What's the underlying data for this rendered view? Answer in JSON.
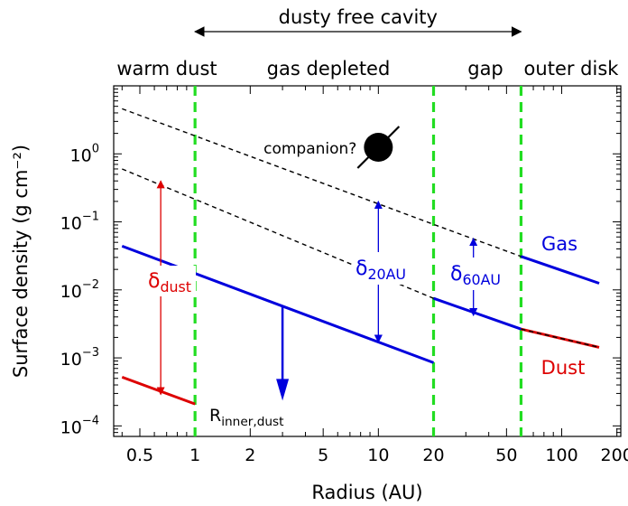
{
  "chart_data": {
    "type": "line",
    "title": "",
    "xlabel": "Radius (AU)",
    "ylabel": "Surface density (g cm⁻²)",
    "x_scale": "log",
    "y_scale": "log",
    "xlim": [
      0.36,
      210
    ],
    "ylim": [
      7e-05,
      10
    ],
    "x_ticks": [
      0.5,
      1,
      2,
      5,
      10,
      20,
      50,
      100,
      200
    ],
    "x_tick_labels": [
      "0.5",
      "1",
      "2",
      "5",
      "10",
      "20",
      "50",
      "100",
      "200"
    ],
    "y_ticks": [
      0.0001,
      0.001,
      0.01,
      0.1,
      1
    ],
    "y_tick_labels": [
      {
        "base": "10",
        "exp": "−4"
      },
      {
        "base": "10",
        "exp": "−3"
      },
      {
        "base": "10",
        "exp": "−2"
      },
      {
        "base": "10",
        "exp": "−1"
      },
      {
        "base": "10",
        "exp": "0"
      }
    ],
    "grid": false,
    "colors": {
      "gas": "#0000dd",
      "dust": "#dd0000",
      "boundary": "#22dd22",
      "reference": "#000000"
    },
    "series": [
      {
        "name": "",
        "style": "dashed",
        "color": "#000000",
        "x": [
          0.4,
          20,
          60,
          160
        ],
        "y": [
          4.6,
          0.092,
          0.031,
          0.0125
        ]
      },
      {
        "name": "",
        "style": "dashed",
        "color": "#000000",
        "x": [
          0.4,
          20,
          60,
          160
        ],
        "y": [
          0.6,
          0.0075,
          0.00265,
          0.00143
        ]
      },
      {
        "name": "Gas",
        "style": "solid",
        "color": "#0000dd",
        "x": [
          0.4,
          20
        ],
        "y": [
          0.044,
          0.00085
        ]
      },
      {
        "name": "Gas",
        "style": "solid",
        "color": "#0000dd",
        "x": [
          20,
          60
        ],
        "y": [
          0.0075,
          0.00265
        ]
      },
      {
        "name": "Gas",
        "style": "solid",
        "color": "#0000dd",
        "x": [
          60,
          160
        ],
        "y": [
          0.031,
          0.0125
        ]
      },
      {
        "name": "Dust",
        "style": "solid",
        "color": "#dd0000",
        "x": [
          0.4,
          1
        ],
        "y": [
          0.00052,
          0.00021
        ]
      },
      {
        "name": "Dust",
        "style": "solid",
        "color": "#dd0000",
        "x": [
          60,
          160
        ],
        "y": [
          0.00265,
          0.00143
        ]
      }
    ],
    "boundaries_x": [
      1,
      20,
      60
    ],
    "region_labels": [
      "warm dust",
      "gas depleted",
      "gap",
      "outer disk"
    ],
    "cavity_label": "dusty free cavity",
    "cavity_x": [
      1,
      60
    ],
    "arrows": [
      {
        "label": "δdust",
        "label_main": "δ",
        "label_sub": "dust",
        "color": "#dd0000",
        "x": 0.65,
        "y_top": 0.4,
        "y_bottom": 0.00029
      },
      {
        "label": "δ20AU",
        "label_main": "δ",
        "label_sub": "20AU",
        "color": "#0000dd",
        "x": 10,
        "y_top": 0.2,
        "y_bottom": 0.0017
      },
      {
        "label": "δ60AU",
        "label_main": "δ",
        "label_sub": "60AU",
        "color": "#0000dd",
        "x": 33,
        "y_top": 0.057,
        "y_bottom": 0.0042
      }
    ],
    "depletion_arrow": {
      "x": 3,
      "y_from": 0.0058,
      "y_to": 0.00025
    },
    "annotations": [
      {
        "text": "companion?",
        "x": 6.5,
        "y": 1.25
      },
      {
        "text": "Gas",
        "x": 95,
        "y": 0.032
      },
      {
        "text": "Dust",
        "x": 95,
        "y": 0.00072
      },
      {
        "text": "R_inner,dust",
        "main": "R",
        "sub": "inner,dust",
        "x": 1.05,
        "y": 0.000135
      }
    ]
  }
}
